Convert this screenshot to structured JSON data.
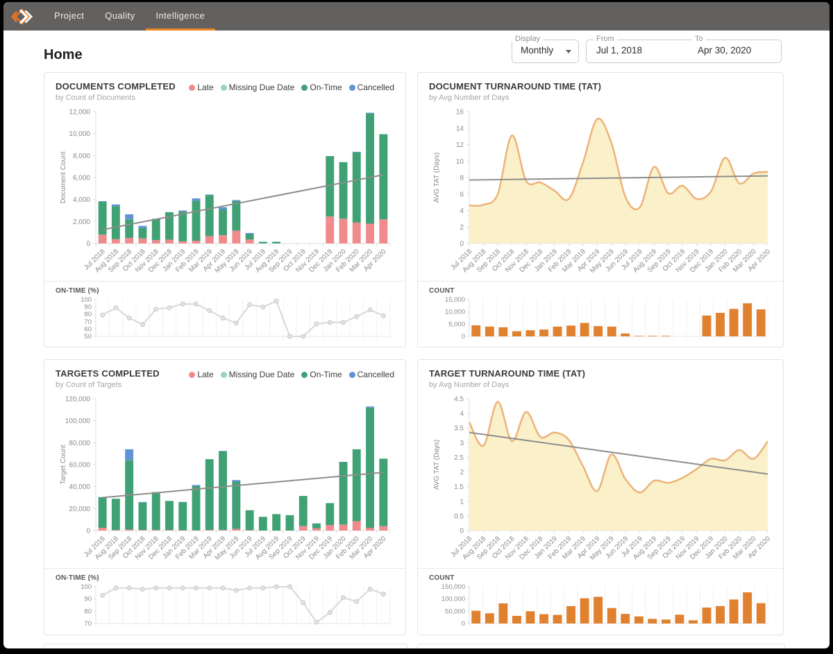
{
  "nav": {
    "tabs": [
      {
        "label": "Project"
      },
      {
        "label": "Quality"
      },
      {
        "label": "Intelligence"
      }
    ],
    "active_tab": "Intelligence"
  },
  "page": {
    "title": "Home"
  },
  "filters": {
    "display_label": "Display",
    "display_value": "Monthly",
    "from_label": "From",
    "from_value": "Jul 1, 2018",
    "to_label": "To",
    "to_value": "Apr 30, 2020"
  },
  "legend": [
    {
      "label": "Late",
      "color": "#F08B8D"
    },
    {
      "label": "Missing Due Date",
      "color": "#97D6B6"
    },
    {
      "label": "On-Time",
      "color": "#40A175"
    },
    {
      "label": "Cancelled",
      "color": "#6191D6"
    }
  ],
  "colors": {
    "accent": "#E8861F",
    "nav_bg": "#626160",
    "logo_orange": "#E87722",
    "axis_line": "#DEDEDE",
    "axis_text": "#8A8A8A",
    "grid": "#F1F1F1",
    "trend": "#8C8C8C",
    "spark_line": "#D8D8D8",
    "spark_dot": "#E3E3E3",
    "spark_dot_ring": "#C9C9C9",
    "bar_orange": "#E0812F",
    "area_fill": "#FAF0CA",
    "area_stroke": "#ECB377"
  },
  "chart_data": {
    "categories": [
      "Jul 2018",
      "Aug 2018",
      "Sep 2018",
      "Oct 2018",
      "Nov 2018",
      "Dec 2018",
      "Jan 2019",
      "Feb 2019",
      "Mar 2019",
      "Apr 2019",
      "May 2019",
      "Jun 2019",
      "Jul 2019",
      "Aug 2019",
      "Sep 2019",
      "Oct 2019",
      "Nov 2019",
      "Dec 2019",
      "Jan 2020",
      "Feb 2020",
      "Mar 2020",
      "Apr 2020"
    ],
    "charts": [
      {
        "id": "documents_completed",
        "type": "stacked-bar",
        "title": "DOCUMENTS COMPLETED",
        "subtitle": "by Count of Documents",
        "ylabel": "Document Count",
        "ylim": [
          0,
          12000
        ],
        "ytick_step": 2000,
        "series": [
          {
            "name": "Late",
            "color": "#F08B8D",
            "values": [
              800,
              400,
              500,
              450,
              300,
              350,
              200,
              250,
              650,
              750,
              1150,
              350,
              0,
              0,
              0,
              0,
              0,
              2450,
              2250,
              1900,
              1800,
              2200
            ]
          },
          {
            "name": "Missing Due Date",
            "color": "#97D6B6",
            "values": [
              0,
              0,
              0,
              0,
              0,
              0,
              0,
              0,
              0,
              0,
              0,
              0,
              0,
              0,
              0,
              0,
              0,
              0,
              0,
              0,
              0,
              0
            ]
          },
          {
            "name": "On-Time",
            "color": "#40A175",
            "values": [
              3000,
              3000,
              1700,
              950,
              1950,
              2500,
              2700,
              3650,
              3750,
              2350,
              2700,
              500,
              150,
              150,
              0,
              0,
              0,
              5500,
              5150,
              6400,
              10050,
              7750
            ]
          },
          {
            "name": "Cancelled",
            "color": "#6191D6",
            "values": [
              50,
              150,
              450,
              200,
              0,
              0,
              100,
              200,
              50,
              200,
              100,
              100,
              0,
              0,
              0,
              0,
              0,
              0,
              0,
              50,
              50,
              0
            ]
          }
        ],
        "trend": {
          "start": 1250,
          "end": 6250
        },
        "sub": {
          "label": "ON-TIME (%)",
          "type": "line",
          "yticks": [
            50,
            60,
            70,
            80,
            90,
            100
          ],
          "values": [
            79,
            89,
            75,
            66,
            87,
            89,
            94,
            94,
            85,
            75,
            68,
            93,
            90,
            98,
            50,
            50,
            67,
            69,
            69,
            77,
            86,
            78
          ]
        }
      },
      {
        "id": "document_tat",
        "type": "area",
        "title": "DOCUMENT TURNAROUND TIME (TAT)",
        "subtitle": "by Avg Number of Days",
        "ylabel": "AVG TAT (Days)",
        "ylim": [
          0,
          16
        ],
        "ytick_step": 2,
        "values": [
          4.6,
          4.7,
          6.0,
          13.1,
          7.6,
          7.4,
          6.4,
          5.4,
          9.8,
          15.1,
          12.2,
          5.6,
          4.4,
          9.3,
          6.1,
          7.0,
          5.4,
          6.3,
          10.4,
          7.3,
          8.5,
          8.7
        ],
        "trend": {
          "start": 7.7,
          "end": 8.2
        },
        "sub": {
          "label": "COUNT",
          "type": "bar",
          "yticks": [
            0,
            5000,
            10000,
            15000
          ],
          "ymax": 15000,
          "values": [
            4500,
            4000,
            3700,
            2100,
            2500,
            2800,
            4000,
            4400,
            5500,
            4200,
            4000,
            1200,
            150,
            250,
            150,
            0,
            0,
            8500,
            9600,
            11200,
            13500,
            11000
          ]
        }
      },
      {
        "id": "targets_completed",
        "type": "stacked-bar",
        "title": "TARGETS COMPLETED",
        "subtitle": "by Count of Targets",
        "ylabel": "Target Count",
        "ylim": [
          0,
          120000
        ],
        "ytick_step": 20000,
        "series": [
          {
            "name": "Late",
            "color": "#F08B8D",
            "values": [
              2500,
              500,
              1000,
              500,
              500,
              500,
              300,
              300,
              500,
              500,
              1500,
              300,
              0,
              0,
              0,
              4000,
              2000,
              5000,
              5500,
              8500,
              2500,
              4000
            ]
          },
          {
            "name": "Missing Due Date",
            "color": "#97D6B6",
            "values": [
              0,
              0,
              0,
              0,
              0,
              0,
              0,
              0,
              0,
              0,
              0,
              0,
              0,
              0,
              0,
              0,
              0,
              0,
              0,
              0,
              0,
              0
            ]
          },
          {
            "name": "On-Time",
            "color": "#40A175",
            "values": [
              27500,
              28500,
              63000,
              25000,
              34500,
              26500,
              25700,
              40200,
              64500,
              71500,
              43000,
              18200,
              12500,
              15000,
              14000,
              27500,
              4500,
              20000,
              57000,
              65500,
              109500,
              61500
            ]
          },
          {
            "name": "Cancelled",
            "color": "#6191D6",
            "values": [
              500,
              0,
              10000,
              500,
              0,
              0,
              0,
              1000,
              0,
              500,
              1500,
              0,
              0,
              0,
              0,
              0,
              0,
              0,
              0,
              0,
              1000,
              0
            ]
          }
        ],
        "trend": {
          "start": 30000,
          "end": 53000
        },
        "sub": {
          "label": "ON-TIME (%)",
          "type": "line",
          "yticks": [
            70,
            80,
            90,
            100
          ],
          "values": [
            93,
            99,
            99,
            98,
            99,
            99,
            99,
            99,
            99,
            99,
            97,
            99,
            99,
            100,
            100,
            87,
            71,
            79,
            91,
            88,
            98,
            94
          ]
        }
      },
      {
        "id": "target_tat",
        "type": "area",
        "title": "TARGET TURNAROUND TIME (TAT)",
        "subtitle": "by Avg Number of Days",
        "ylabel": "AVG TAT (Days)",
        "ylim": [
          0,
          4.5
        ],
        "ytick_step": 0.5,
        "values": [
          3.7,
          2.9,
          4.4,
          3.05,
          4.05,
          3.2,
          3.35,
          3.1,
          2.2,
          1.35,
          2.6,
          1.75,
          1.3,
          1.7,
          1.63,
          1.8,
          2.1,
          2.45,
          2.4,
          2.75,
          2.45,
          3.05
        ],
        "trend": {
          "start": 3.35,
          "end": 1.93
        },
        "sub": {
          "label": "COUNT",
          "type": "bar",
          "yticks": [
            0,
            50000,
            100000,
            150000
          ],
          "ymax": 150000,
          "values": [
            52000,
            42000,
            82000,
            31000,
            50000,
            38000,
            35000,
            71000,
            103000,
            109000,
            63000,
            39000,
            29000,
            19000,
            16000,
            36000,
            13000,
            65000,
            71000,
            98000,
            127000,
            83000
          ]
        }
      }
    ]
  }
}
